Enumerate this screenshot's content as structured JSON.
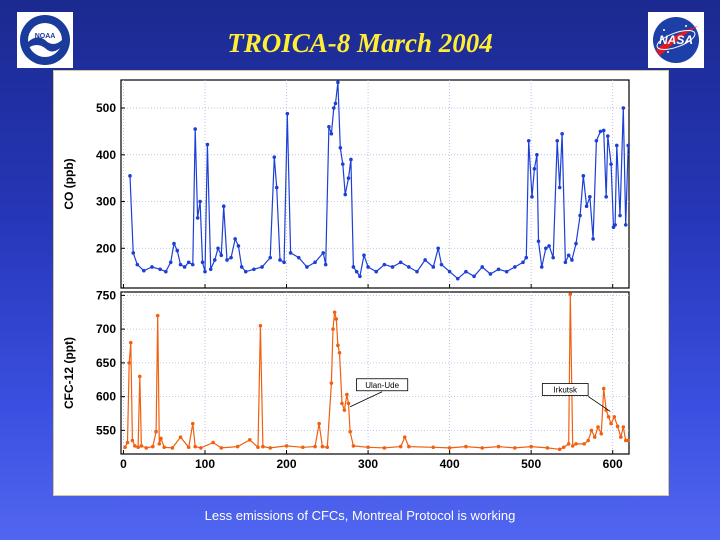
{
  "slide": {
    "title": "TROICA-8 March 2004",
    "caption": "Less emissions of CFCs, Montreal Protocol is working",
    "logos": {
      "left": "NOAA",
      "right": "NASA"
    }
  },
  "colors": {
    "co_series": "#1d3fd6",
    "cfc_series": "#f06010",
    "title": "#ffee33"
  },
  "chart_data": [
    {
      "type": "line",
      "ylabel": "CO (ppb)",
      "xlabel": "",
      "xlim": [
        -3,
        620
      ],
      "ylim": [
        115,
        560
      ],
      "xticks": [
        0,
        100,
        200,
        300,
        400,
        500,
        600
      ],
      "yticks": [
        200,
        300,
        400,
        500
      ],
      "grid": true,
      "series": [
        {
          "points": [
            [
              8,
              355
            ],
            [
              12,
              190
            ],
            [
              17,
              165
            ],
            [
              25,
              152
            ],
            [
              35,
              160
            ],
            [
              45,
              155
            ],
            [
              52,
              150
            ],
            [
              58,
              170
            ],
            [
              62,
              210
            ],
            [
              66,
              195
            ],
            [
              70,
              165
            ],
            [
              75,
              160
            ],
            [
              80,
              170
            ],
            [
              85,
              165
            ],
            [
              88,
              455
            ],
            [
              91,
              265
            ],
            [
              94,
              300
            ],
            [
              97,
              170
            ],
            [
              100,
              150
            ],
            [
              103,
              422
            ],
            [
              107,
              155
            ],
            [
              112,
              175
            ],
            [
              116,
              200
            ],
            [
              120,
              185
            ],
            [
              123,
              290
            ],
            [
              127,
              175
            ],
            [
              132,
              180
            ],
            [
              137,
              220
            ],
            [
              141,
              205
            ],
            [
              145,
              160
            ],
            [
              150,
              150
            ],
            [
              160,
              155
            ],
            [
              170,
              160
            ],
            [
              180,
              180
            ],
            [
              185,
              395
            ],
            [
              188,
              330
            ],
            [
              192,
              175
            ],
            [
              197,
              170
            ],
            [
              201,
              488
            ],
            [
              205,
              190
            ],
            [
              215,
              180
            ],
            [
              225,
              160
            ],
            [
              235,
              170
            ],
            [
              245,
              190
            ],
            [
              248,
              165
            ],
            [
              252,
              460
            ],
            [
              255,
              445
            ],
            [
              258,
              500
            ],
            [
              260,
              510
            ],
            [
              263,
              555
            ],
            [
              266,
              415
            ],
            [
              269,
              380
            ],
            [
              272,
              315
            ],
            [
              276,
              350
            ],
            [
              279,
              390
            ],
            [
              282,
              160
            ],
            [
              286,
              150
            ],
            [
              290,
              140
            ],
            [
              295,
              185
            ],
            [
              300,
              160
            ],
            [
              310,
              150
            ],
            [
              320,
              165
            ],
            [
              330,
              160
            ],
            [
              340,
              170
            ],
            [
              350,
              160
            ],
            [
              360,
              150
            ],
            [
              370,
              175
            ],
            [
              380,
              160
            ],
            [
              386,
              200
            ],
            [
              390,
              165
            ],
            [
              400,
              150
            ],
            [
              410,
              135
            ],
            [
              420,
              150
            ],
            [
              430,
              140
            ],
            [
              440,
              160
            ],
            [
              450,
              145
            ],
            [
              460,
              155
            ],
            [
              470,
              150
            ],
            [
              480,
              160
            ],
            [
              490,
              170
            ],
            [
              494,
              180
            ],
            [
              497,
              430
            ],
            [
              501,
              310
            ],
            [
              504,
              370
            ],
            [
              507,
              400
            ],
            [
              509,
              215
            ],
            [
              513,
              160
            ],
            [
              518,
              200
            ],
            [
              522,
              205
            ],
            [
              527,
              180
            ],
            [
              532,
              430
            ],
            [
              535,
              330
            ],
            [
              538,
              445
            ],
            [
              542,
              170
            ],
            [
              546,
              185
            ],
            [
              550,
              175
            ],
            [
              555,
              210
            ],
            [
              560,
              270
            ],
            [
              564,
              355
            ],
            [
              568,
              290
            ],
            [
              572,
              310
            ],
            [
              576,
              220
            ],
            [
              580,
              430
            ],
            [
              585,
              450
            ],
            [
              589,
              452
            ],
            [
              592,
              310
            ],
            [
              594,
              440
            ],
            [
              598,
              380
            ],
            [
              601,
              245
            ],
            [
              603,
              250
            ],
            [
              605,
              420
            ],
            [
              609,
              270
            ],
            [
              613,
              500
            ],
            [
              616,
              250
            ],
            [
              619,
              420
            ]
          ]
        }
      ]
    },
    {
      "type": "line",
      "ylabel": "CFC-12 (ppt)",
      "xlabel": "",
      "xlim": [
        -3,
        620
      ],
      "ylim": [
        515,
        755
      ],
      "xticks": [
        0,
        100,
        200,
        300,
        400,
        500,
        600
      ],
      "yticks": [
        550,
        600,
        650,
        700,
        750
      ],
      "grid": true,
      "annotations": [
        {
          "text": "Ulan-Ude",
          "x": 278,
          "y": 585
        },
        {
          "text": "Irkutsk",
          "x": 597,
          "y": 578
        }
      ],
      "series": [
        {
          "points": [
            [
              2,
              525
            ],
            [
              5,
              532
            ],
            [
              7,
              650
            ],
            [
              9,
              680
            ],
            [
              11,
              535
            ],
            [
              14,
              527
            ],
            [
              18,
              525
            ],
            [
              20,
              630
            ],
            [
              22,
              527
            ],
            [
              28,
              524
            ],
            [
              36,
              526
            ],
            [
              40,
              548
            ],
            [
              42,
              720
            ],
            [
              44,
              530
            ],
            [
              46,
              538
            ],
            [
              50,
              525
            ],
            [
              60,
              524
            ],
            [
              70,
              540
            ],
            [
              80,
              525
            ],
            [
              85,
              560
            ],
            [
              88,
              526
            ],
            [
              95,
              524
            ],
            [
              110,
              532
            ],
            [
              120,
              524
            ],
            [
              140,
              526
            ],
            [
              155,
              536
            ],
            [
              165,
              525
            ],
            [
              168,
              705
            ],
            [
              171,
              526
            ],
            [
              180,
              524
            ],
            [
              200,
              527
            ],
            [
              220,
              525
            ],
            [
              235,
              526
            ],
            [
              240,
              560
            ],
            [
              244,
              526
            ],
            [
              250,
              525
            ],
            [
              255,
              620
            ],
            [
              257,
              700
            ],
            [
              259,
              725
            ],
            [
              261,
              715
            ],
            [
              263,
              676
            ],
            [
              265,
              665
            ],
            [
              268,
              590
            ],
            [
              271,
              580
            ],
            [
              274,
              603
            ],
            [
              276,
              590
            ],
            [
              278,
              548
            ],
            [
              282,
              527
            ],
            [
              300,
              525
            ],
            [
              320,
              524
            ],
            [
              340,
              526
            ],
            [
              345,
              540
            ],
            [
              350,
              526
            ],
            [
              380,
              525
            ],
            [
              400,
              524
            ],
            [
              420,
              526
            ],
            [
              440,
              524
            ],
            [
              460,
              526
            ],
            [
              480,
              524
            ],
            [
              500,
              526
            ],
            [
              520,
              524
            ],
            [
              535,
              522
            ],
            [
              540,
              525
            ],
            [
              546,
              530
            ],
            [
              548,
              752
            ],
            [
              551,
              527
            ],
            [
              555,
              530
            ],
            [
              565,
              530
            ],
            [
              570,
              535
            ],
            [
              574,
              550
            ],
            [
              578,
              540
            ],
            [
              582,
              555
            ],
            [
              586,
              545
            ],
            [
              589,
              612
            ],
            [
              592,
              580
            ],
            [
              595,
              570
            ],
            [
              598,
              560
            ],
            [
              602,
              570
            ],
            [
              606,
              556
            ],
            [
              610,
              540
            ],
            [
              613,
              555
            ],
            [
              616,
              535
            ],
            [
              619,
              535
            ]
          ]
        }
      ]
    }
  ]
}
